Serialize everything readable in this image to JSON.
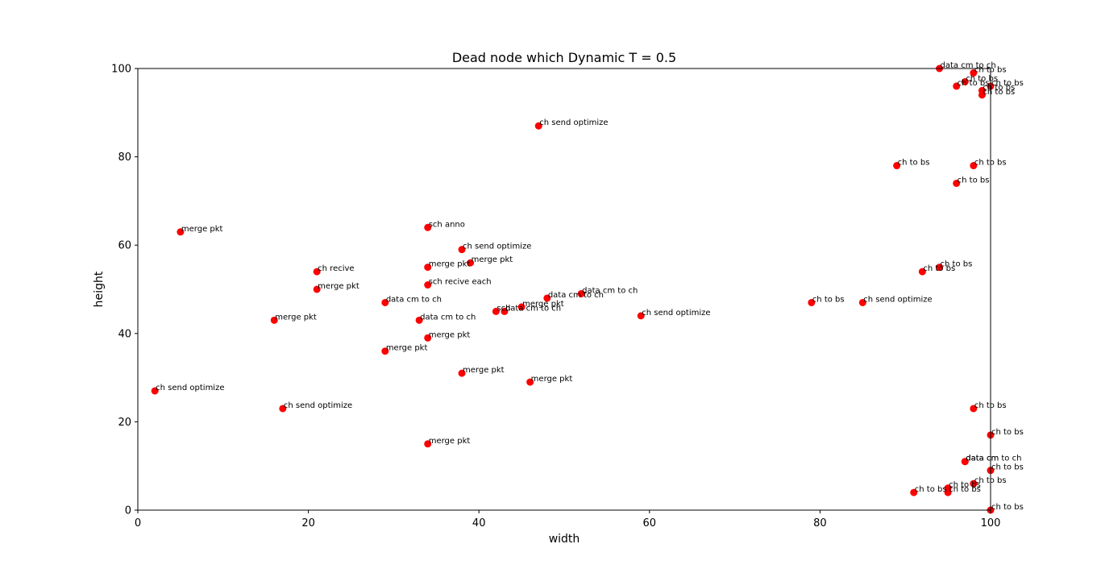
{
  "chart_data": {
    "type": "scatter",
    "title": "Dead node which Dynamic T = 0.5",
    "xlabel": "width",
    "ylabel": "height",
    "xlim": [
      0,
      100
    ],
    "ylim": [
      0,
      100
    ],
    "xticks": [
      0,
      20,
      40,
      60,
      80,
      100
    ],
    "yticks": [
      0,
      20,
      40,
      60,
      80,
      100
    ],
    "grid": false,
    "marker_color": "#ff0000",
    "points": [
      {
        "x": 94,
        "y": 100,
        "label": "data cm to ch"
      },
      {
        "x": 98,
        "y": 99,
        "label": "ch to bs"
      },
      {
        "x": 97,
        "y": 97,
        "label": "ch to bs"
      },
      {
        "x": 96,
        "y": 96,
        "label": "ch to bs"
      },
      {
        "x": 100,
        "y": 96,
        "label": "ch to bs"
      },
      {
        "x": 99,
        "y": 95,
        "label": "ch to bs"
      },
      {
        "x": 99,
        "y": 94,
        "label": "ch to bs"
      },
      {
        "x": 47,
        "y": 87,
        "label": "ch send optimize"
      },
      {
        "x": 89,
        "y": 78,
        "label": "ch to bs"
      },
      {
        "x": 98,
        "y": 78,
        "label": "ch to bs"
      },
      {
        "x": 96,
        "y": 74,
        "label": "ch to bs"
      },
      {
        "x": 34,
        "y": 64,
        "label": "sch anno"
      },
      {
        "x": 5,
        "y": 63,
        "label": "merge pkt"
      },
      {
        "x": 38,
        "y": 59,
        "label": "ch send optimize"
      },
      {
        "x": 39,
        "y": 56,
        "label": "merge pkt"
      },
      {
        "x": 34,
        "y": 55,
        "label": "merge pkt"
      },
      {
        "x": 94,
        "y": 55,
        "label": "ch to bs"
      },
      {
        "x": 21,
        "y": 54,
        "label": "ch recive"
      },
      {
        "x": 92,
        "y": 54,
        "label": "ch to bs"
      },
      {
        "x": 34,
        "y": 51,
        "label": "sch recive each"
      },
      {
        "x": 21,
        "y": 50,
        "label": "merge pkt"
      },
      {
        "x": 52,
        "y": 49,
        "label": "data cm to ch"
      },
      {
        "x": 48,
        "y": 48,
        "label": "data cm to ch"
      },
      {
        "x": 29,
        "y": 47,
        "label": "data cm to ch"
      },
      {
        "x": 79,
        "y": 47,
        "label": "ch to bs"
      },
      {
        "x": 85,
        "y": 47,
        "label": "ch send optimize"
      },
      {
        "x": 45,
        "y": 46,
        "label": "merge pkt"
      },
      {
        "x": 42,
        "y": 45,
        "label": "sch"
      },
      {
        "x": 43,
        "y": 45,
        "label": "data cm to ch"
      },
      {
        "x": 59,
        "y": 44,
        "label": "ch send optimize"
      },
      {
        "x": 16,
        "y": 43,
        "label": "merge pkt"
      },
      {
        "x": 33,
        "y": 43,
        "label": "data cm to ch"
      },
      {
        "x": 34,
        "y": 39,
        "label": "merge pkt"
      },
      {
        "x": 29,
        "y": 36,
        "label": "merge pkt"
      },
      {
        "x": 38,
        "y": 31,
        "label": "merge pkt"
      },
      {
        "x": 46,
        "y": 29,
        "label": "merge pkt"
      },
      {
        "x": 2,
        "y": 27,
        "label": "ch send optimize"
      },
      {
        "x": 17,
        "y": 23,
        "label": "ch send optimize"
      },
      {
        "x": 98,
        "y": 23,
        "label": "ch to bs"
      },
      {
        "x": 100,
        "y": 17,
        "label": "ch to bs"
      },
      {
        "x": 34,
        "y": 15,
        "label": "merge pkt"
      },
      {
        "x": 97,
        "y": 11,
        "label": "data cm to ch"
      },
      {
        "x": 97,
        "y": 11,
        "label": "data cm"
      },
      {
        "x": 100,
        "y": 9,
        "label": "ch to bs"
      },
      {
        "x": 98,
        "y": 6,
        "label": "ch to bs"
      },
      {
        "x": 95,
        "y": 5,
        "label": "ch to bs"
      },
      {
        "x": 95,
        "y": 4,
        "label": "ch to bs"
      },
      {
        "x": 91,
        "y": 4,
        "label": "ch to bs"
      },
      {
        "x": 100,
        "y": 0,
        "label": "ch to bs"
      }
    ]
  }
}
